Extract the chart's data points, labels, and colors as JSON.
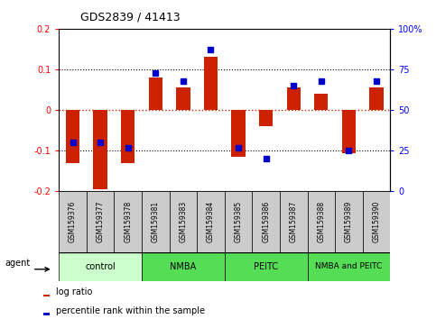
{
  "title": "GDS2839 / 41413",
  "samples": [
    "GSM159376",
    "GSM159377",
    "GSM159378",
    "GSM159381",
    "GSM159383",
    "GSM159384",
    "GSM159385",
    "GSM159386",
    "GSM159387",
    "GSM159388",
    "GSM159389",
    "GSM159390"
  ],
  "log_ratio": [
    -0.13,
    -0.195,
    -0.13,
    0.08,
    0.055,
    0.13,
    -0.115,
    -0.04,
    0.055,
    0.04,
    -0.105,
    0.055
  ],
  "percentile_rank": [
    30,
    30,
    27,
    73,
    68,
    87,
    27,
    20,
    65,
    68,
    25,
    68
  ],
  "groups": [
    {
      "label": "control",
      "start": 0,
      "end": 3,
      "color": "#ccffcc"
    },
    {
      "label": "NMBA",
      "start": 3,
      "end": 6,
      "color": "#55dd55"
    },
    {
      "label": "PEITC",
      "start": 6,
      "end": 9,
      "color": "#55dd55"
    },
    {
      "label": "NMBA and PEITC",
      "start": 9,
      "end": 12,
      "color": "#55dd55"
    }
  ],
  "ylim": [
    -0.2,
    0.2
  ],
  "yticks_left": [
    -0.2,
    -0.1,
    0.0,
    0.1,
    0.2
  ],
  "yticks_right": [
    0,
    25,
    50,
    75,
    100
  ],
  "bar_color": "#cc2200",
  "percentile_color": "#0000cc",
  "background_color": "#ffffff",
  "zero_line_color": "#cc2200",
  "bar_width": 0.5,
  "percentile_marker_size": 4,
  "sample_box_color": "#cccccc",
  "agent_label": "agent"
}
